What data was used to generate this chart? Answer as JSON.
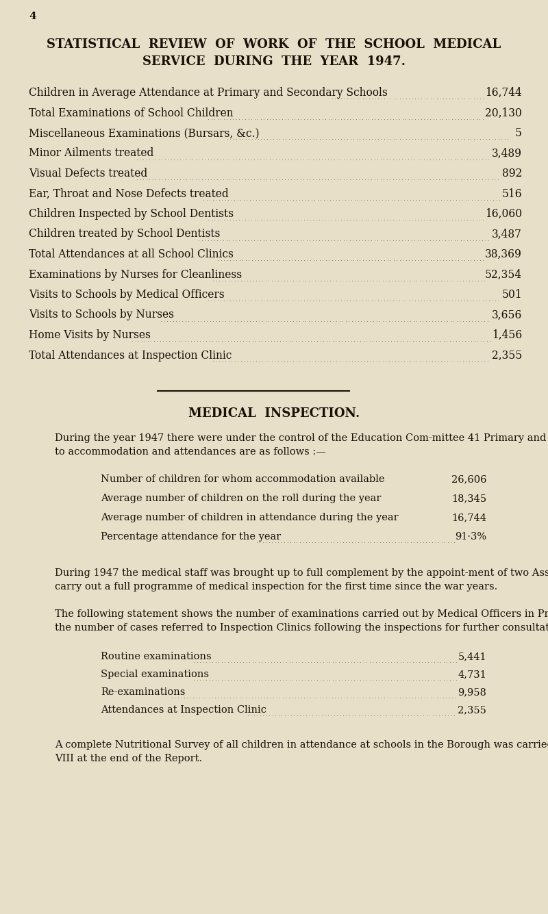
{
  "bg_color": "#e8dfc8",
  "text_color": "#1a1008",
  "page_number": "4",
  "title_line1": "STATISTICAL  REVIEW  OF  WORK  OF  THE  SCHOOL  MEDICAL",
  "title_line2": "SERVICE  DURING  THE  YEAR  1947.",
  "stats_rows": [
    {
      "label": "Children in Average Attendance at Primary and Secondary Schools",
      "value": "16,744"
    },
    {
      "label": "Total Examinations of School Children",
      "value": "20,130"
    },
    {
      "label": "Miscellaneous Examinations (Bursars, &c.)",
      "value": "5"
    },
    {
      "label": "Minor Ailments treated",
      "value": "3,489"
    },
    {
      "label": "Visual Defects treated",
      "value": "892"
    },
    {
      "label": "Ear, Throat and Nose Defects treated",
      "value": "516"
    },
    {
      "label": "Children Inspected by School Dentists",
      "value": "16,060"
    },
    {
      "label": "Children treated by School Dentists",
      "value": "3,487"
    },
    {
      "label": "Total Attendances at all School Clinics",
      "value": "38,369"
    },
    {
      "label": "Examinations by Nurses for Cleanliness",
      "value": "52,354"
    },
    {
      "label": "Visits to Schools by Medical Officers",
      "value": "501"
    },
    {
      "label": "Visits to Schools by Nurses",
      "value": "3,656"
    },
    {
      "label": "Home Visits by Nurses",
      "value": "1,456"
    },
    {
      "label": "Total Attendances at Inspection Clinic",
      "value": "2,355"
    }
  ],
  "section_title": "MEDICAL  INSPECTION.",
  "indented_rows": [
    {
      "label": "Number of children for whom accommodation available",
      "value": "26,606",
      "dots": false
    },
    {
      "label": "Average number of children on the roll during the year",
      "value": "18,345",
      "dots": false
    },
    {
      "label": "Average number of children in attendance during the year",
      "value": "16,744",
      "dots": false
    },
    {
      "label": "Percentage attendance for the year",
      "value": "91·3%",
      "dots": true
    }
  ],
  "exam_rows": [
    {
      "label": "Routine examinations",
      "value": "5,441"
    },
    {
      "label": "Special examinations",
      "value": "4,731"
    },
    {
      "label": "Re-examinations",
      "value": "9,958"
    },
    {
      "label": "Attendances at Inspection Clinic",
      "value": "2,355"
    }
  ]
}
